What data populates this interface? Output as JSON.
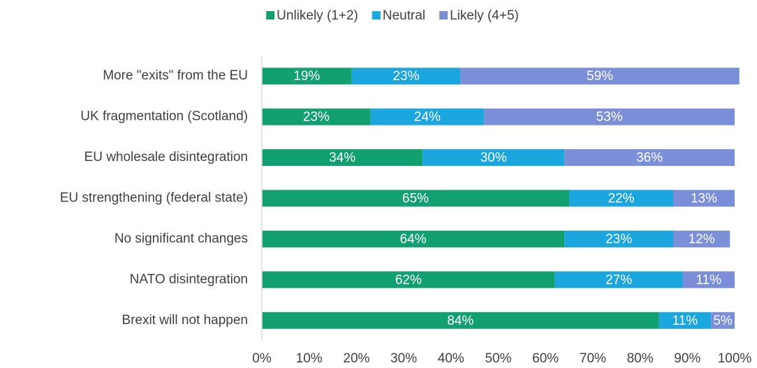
{
  "chart_data": {
    "type": "stacked_barh",
    "categories": [
      "More \"exits\" from the EU",
      "UK fragmentation (Scotland)",
      "EU wholesale disintegration",
      "EU strengthening (federal state)",
      "No significant changes",
      "NATO disintegration",
      "Brexit will not happen"
    ],
    "series": [
      {
        "name": "Unlikely (1+2)",
        "color": "#13a070",
        "values": [
          19,
          23,
          34,
          65,
          64,
          62,
          84
        ],
        "value_labels": [
          "19%",
          "23%",
          "34%",
          "65%",
          "64%",
          "62%",
          "84%"
        ]
      },
      {
        "name": "Neutral",
        "color": "#1ba6de",
        "values": [
          23,
          24,
          30,
          22,
          23,
          27,
          11
        ],
        "value_labels": [
          "23%",
          "24%",
          "30%",
          "22%",
          "23%",
          "27%",
          "11%"
        ]
      },
      {
        "name": "Likely (4+5)",
        "color": "#7b8ed8",
        "values": [
          59,
          53,
          36,
          13,
          12,
          11,
          5
        ],
        "value_labels": [
          "59%",
          "53%",
          "36%",
          "13%",
          "12%",
          "11%",
          "5%"
        ]
      }
    ],
    "xlim": [
      0,
      100
    ],
    "xticks": [
      {
        "value": 0,
        "label": "0%"
      },
      {
        "value": 10,
        "label": "10%"
      },
      {
        "value": 20,
        "label": "20%"
      },
      {
        "value": 30,
        "label": "30%"
      },
      {
        "value": 40,
        "label": "40%"
      },
      {
        "value": 50,
        "label": "50%"
      },
      {
        "value": 60,
        "label": "60%"
      },
      {
        "value": 70,
        "label": "70%"
      },
      {
        "value": 80,
        "label": "80%"
      },
      {
        "value": 90,
        "label": "90%"
      },
      {
        "value": 100,
        "label": "100%"
      }
    ],
    "legend": "top"
  }
}
